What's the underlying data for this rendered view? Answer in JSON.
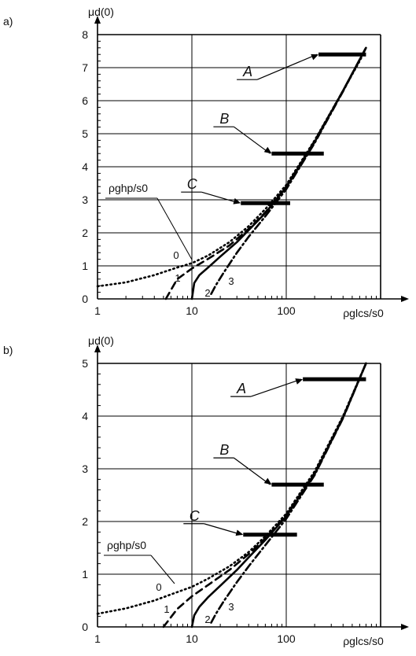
{
  "chart_data": [
    {
      "type": "line",
      "panel_label": "a)",
      "ylabel": "μd(0)",
      "xlabel": "ρglcs/s0",
      "x_scale": "log",
      "xlim": [
        1,
        1000
      ],
      "ylim": [
        0,
        8
      ],
      "x_ticks": [
        "1",
        "10",
        "100"
      ],
      "y_ticks": [
        "0",
        "1",
        "2",
        "3",
        "4",
        "5",
        "6",
        "7",
        "8"
      ],
      "grid": true,
      "annotation": "ρghp/s0",
      "series": [
        {
          "name": "0",
          "style": "dotted",
          "x": [
            1,
            2,
            4,
            7,
            10,
            15,
            25,
            40,
            60,
            100,
            200,
            400,
            600,
            700
          ],
          "y": [
            0.38,
            0.5,
            0.72,
            0.95,
            1.08,
            1.32,
            1.72,
            2.2,
            2.72,
            3.45,
            4.8,
            6.3,
            7.2,
            7.6
          ]
        },
        {
          "name": "1",
          "style": "dashed",
          "x": [
            5.3,
            7,
            10,
            15,
            25,
            40,
            60,
            100,
            200,
            400,
            700
          ],
          "y": [
            0.0,
            0.6,
            0.92,
            1.22,
            1.62,
            2.12,
            2.62,
            3.4,
            4.78,
            6.3,
            7.6
          ]
        },
        {
          "name": "2",
          "style": "solid",
          "x": [
            10,
            10.6,
            12,
            15,
            20,
            30,
            40,
            60,
            100,
            200,
            400,
            700
          ],
          "y": [
            0.0,
            0.48,
            0.72,
            0.96,
            1.28,
            1.72,
            2.08,
            2.6,
            3.38,
            4.75,
            6.3,
            7.6
          ]
        },
        {
          "name": "3",
          "style": "dashdot",
          "x": [
            16,
            18,
            22,
            30,
            40,
            60,
            100,
            200,
            400,
            700
          ],
          "y": [
            0.15,
            0.42,
            0.82,
            1.4,
            1.88,
            2.5,
            3.32,
            4.72,
            6.28,
            7.6
          ]
        }
      ],
      "reference_bars": [
        {
          "name": "A",
          "x_from": 220,
          "x_to": 700,
          "y": 7.4
        },
        {
          "name": "B",
          "x_from": 70,
          "x_to": 250,
          "y": 4.4
        },
        {
          "name": "C",
          "x_from": 33,
          "x_to": 110,
          "y": 2.9
        }
      ]
    },
    {
      "type": "line",
      "panel_label": "b)",
      "ylabel": "μd(0)",
      "xlabel": "ρglcs/s0",
      "x_scale": "log",
      "xlim": [
        1,
        1000
      ],
      "ylim": [
        0,
        5
      ],
      "x_ticks": [
        "1",
        "10",
        "100"
      ],
      "y_ticks": [
        "0",
        "1",
        "2",
        "3",
        "4",
        "5"
      ],
      "grid": true,
      "annotation": "ρghp/s0",
      "series": [
        {
          "name": "0",
          "style": "dotted",
          "x": [
            1,
            2,
            4,
            7,
            10,
            15,
            25,
            40,
            60,
            100,
            200,
            400,
            700
          ],
          "y": [
            0.25,
            0.35,
            0.5,
            0.66,
            0.76,
            0.92,
            1.15,
            1.42,
            1.72,
            2.15,
            2.95,
            4.0,
            5.0
          ]
        },
        {
          "name": "1",
          "style": "dashed",
          "x": [
            5,
            7,
            10,
            15,
            25,
            40,
            60,
            100,
            200,
            400,
            700
          ],
          "y": [
            0.0,
            0.34,
            0.58,
            0.8,
            1.08,
            1.38,
            1.68,
            2.12,
            2.92,
            3.98,
            5.0
          ]
        },
        {
          "name": "2",
          "style": "solid",
          "x": [
            10,
            10.6,
            12,
            15,
            20,
            30,
            40,
            60,
            100,
            200,
            400,
            700
          ],
          "y": [
            0.0,
            0.22,
            0.38,
            0.57,
            0.78,
            1.08,
            1.32,
            1.65,
            2.1,
            2.9,
            3.97,
            5.0
          ]
        },
        {
          "name": "3",
          "style": "dashdot",
          "x": [
            16,
            18,
            22,
            30,
            40,
            60,
            100,
            200,
            400,
            700
          ],
          "y": [
            0.08,
            0.25,
            0.5,
            0.85,
            1.15,
            1.55,
            2.05,
            2.88,
            3.96,
            5.0
          ]
        }
      ],
      "reference_bars": [
        {
          "name": "A",
          "x_from": 150,
          "x_to": 700,
          "y": 4.7
        },
        {
          "name": "B",
          "x_from": 70,
          "x_to": 250,
          "y": 2.7
        },
        {
          "name": "C",
          "x_from": 35,
          "x_to": 130,
          "y": 1.75
        }
      ]
    }
  ]
}
